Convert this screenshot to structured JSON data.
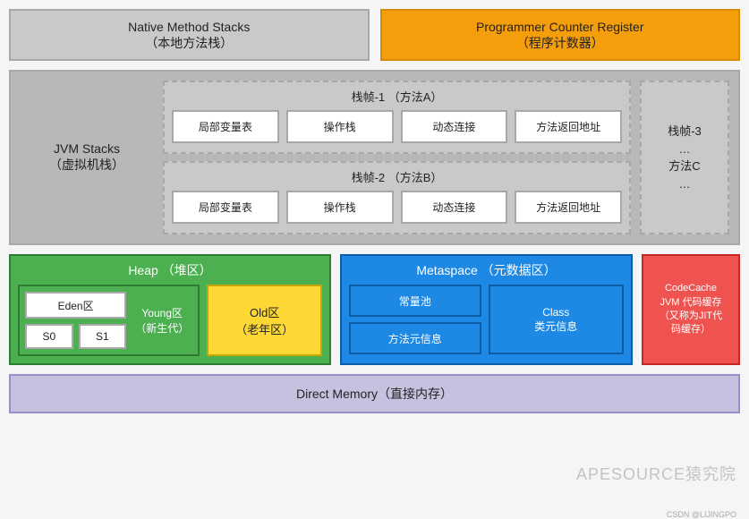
{
  "colors": {
    "gray_border": "#a8a8a8",
    "gray_fill": "#c9c9c9",
    "gray_dark_fill": "#b8b8b8",
    "orange_border": "#d98a00",
    "orange_fill": "#f59e0b",
    "green_border": "#2e7d32",
    "green_fill": "#4caf50",
    "yellow_fill": "#fdd835",
    "yellow_border": "#c8a500",
    "blue_border": "#0b5da8",
    "blue_fill": "#1e88e5",
    "blue_light": "#1e88e5",
    "red_border": "#c62828",
    "red_fill": "#ef5350",
    "lilac_fill": "#c7c1e0",
    "lilac_border": "#9a92c4",
    "white": "#ffffff",
    "text_dark": "#222222"
  },
  "top": {
    "native_stacks": {
      "en": "Native Method Stacks",
      "zh": "（本地方法栈）"
    },
    "pcr": {
      "en": "Programmer Counter Register",
      "zh": "（程序计数器）"
    }
  },
  "jvm_stacks": {
    "label_en": "JVM Stacks",
    "label_zh": "（虚拟机栈）",
    "frame1": {
      "title": "栈帧-1  （方法A）",
      "cells": [
        "局部变量表",
        "操作栈",
        "动态连接",
        "方法返回地址"
      ]
    },
    "frame2": {
      "title": "栈帧-2  （方法B）",
      "cells": [
        "局部变量表",
        "操作栈",
        "动态连接",
        "方法返回地址"
      ]
    },
    "frame3": {
      "l1": "栈帧-3",
      "l2": "…",
      "l3": "方法C",
      "l4": "…"
    }
  },
  "heap": {
    "title": "Heap  （堆区）",
    "eden": "Eden区",
    "s0": "S0",
    "s1": "S1",
    "young_en": "Young区",
    "young_zh": "（新生代）",
    "old_en": "Old区",
    "old_zh": "（老年区）"
  },
  "metaspace": {
    "title": "Metaspace  （元数据区）",
    "const_pool": "常量池",
    "method_meta": "方法元信息",
    "class_en": "Class",
    "class_zh": "类元信息"
  },
  "codecache": {
    "l1": "CodeCache",
    "l2": "JVM 代码缓存",
    "l3": "（又称为JIT代",
    "l4": "码缓存）"
  },
  "direct": "Direct Memory（直接内存）",
  "watermark": "APESOURCE猿究院",
  "credit": "CSDN @LIJINGPO"
}
